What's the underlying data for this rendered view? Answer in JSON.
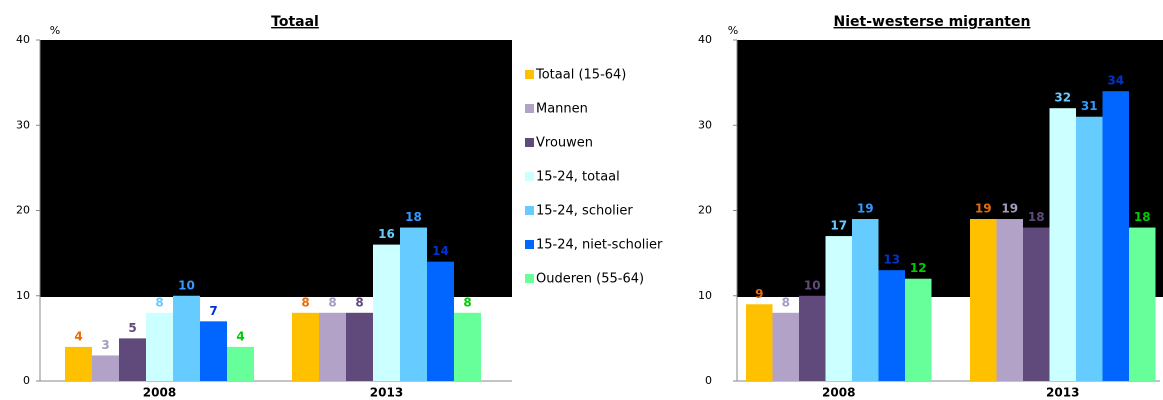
{
  "chart_data": [
    {
      "type": "bar",
      "title": "Totaal",
      "y_unit": "%",
      "categories": [
        "2008",
        "2013"
      ],
      "ylim": [
        0,
        40
      ],
      "yticks": [
        0,
        10,
        20,
        30,
        40
      ],
      "series": [
        {
          "name": "Totaal (15-64)",
          "color": "#ffc000",
          "label_color": "#e46c0a",
          "values": [
            4,
            8
          ]
        },
        {
          "name": "Mannen",
          "color": "#b3a2c7",
          "label_color": "#a59dbf",
          "values": [
            3,
            8
          ]
        },
        {
          "name": "Vrouwen",
          "color": "#604a7b",
          "label_color": "#604a7b",
          "values": [
            5,
            8
          ]
        },
        {
          "name": "15-24, totaal",
          "color": "#ccffff",
          "label_color": "#66ccff",
          "values": [
            8,
            16
          ]
        },
        {
          "name": "15-24, scholier",
          "color": "#66ccff",
          "label_color": "#3399ff",
          "values": [
            10,
            18
          ]
        },
        {
          "name": "15-24, niet-scholier",
          "color": "#0066ff",
          "label_color": "#0033cc",
          "values": [
            7,
            14
          ]
        },
        {
          "name": "Ouderen (55-64)",
          "color": "#66ff99",
          "label_color": "#00cc00",
          "values": [
            4,
            8
          ]
        }
      ]
    },
    {
      "type": "bar",
      "title": "Niet-westerse migranten",
      "y_unit": "%",
      "categories": [
        "2008",
        "2013"
      ],
      "ylim": [
        0,
        40
      ],
      "yticks": [
        0,
        10,
        20,
        30,
        40
      ],
      "series": [
        {
          "color": "#ffc000",
          "label_color": "#e46c0a",
          "values": [
            9,
            19
          ]
        },
        {
          "color": "#b3a2c7",
          "label_color": "#a59dbf",
          "values": [
            8,
            19
          ]
        },
        {
          "color": "#604a7b",
          "label_color": "#604a7b",
          "values": [
            10,
            18
          ]
        },
        {
          "color": "#ccffff",
          "label_color": "#66ccff",
          "values": [
            17,
            32
          ]
        },
        {
          "color": "#66ccff",
          "label_color": "#3399ff",
          "values": [
            19,
            31
          ]
        },
        {
          "color": "#0066ff",
          "label_color": "#0033cc",
          "values": [
            13,
            34
          ]
        },
        {
          "color": "#66ff99",
          "label_color": "#00cc00",
          "values": [
            12,
            18
          ]
        }
      ]
    }
  ]
}
